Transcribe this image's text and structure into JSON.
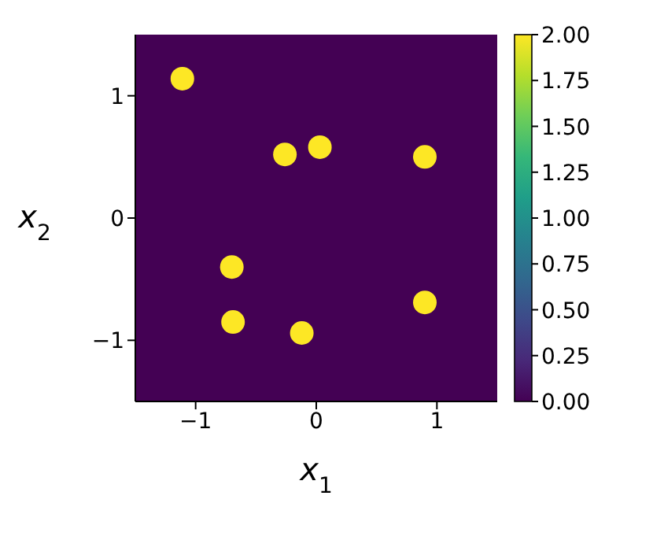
{
  "chart_data": {
    "type": "scatter",
    "xlabel": "x$_{1}$",
    "ylabel": "x$_{2}$",
    "x": [
      -1.11,
      -0.26,
      0.03,
      0.9,
      -0.7,
      -0.69,
      -0.12,
      0.9
    ],
    "values": [
      1.14,
      0.52,
      0.58,
      0.5,
      -0.4,
      -0.85,
      -0.94,
      -0.69
    ],
    "cvalues": [
      2,
      2,
      2,
      2,
      2,
      2,
      2,
      2
    ],
    "xlim": [
      -1.5,
      1.5
    ],
    "ylim": [
      -1.5,
      1.5
    ],
    "xticks": [
      -1,
      0,
      1
    ],
    "yticks": [
      -1,
      0,
      1
    ],
    "clim": [
      0,
      2
    ],
    "cticks": [
      {
        "value": 0,
        "label": "0.00"
      },
      {
        "value": 0.25,
        "label": "0.25"
      },
      {
        "value": 0.5,
        "label": "0.50"
      },
      {
        "value": 0.75,
        "label": "0.75"
      },
      {
        "value": 1,
        "label": "1.00"
      },
      {
        "value": 1.25,
        "label": "1.25"
      },
      {
        "value": 1.5,
        "label": "1.50"
      },
      {
        "value": 1.75,
        "label": "1.75"
      },
      {
        "value": 2,
        "label": "2.00"
      }
    ],
    "grid": false,
    "legend": false,
    "marker": "circle"
  }
}
